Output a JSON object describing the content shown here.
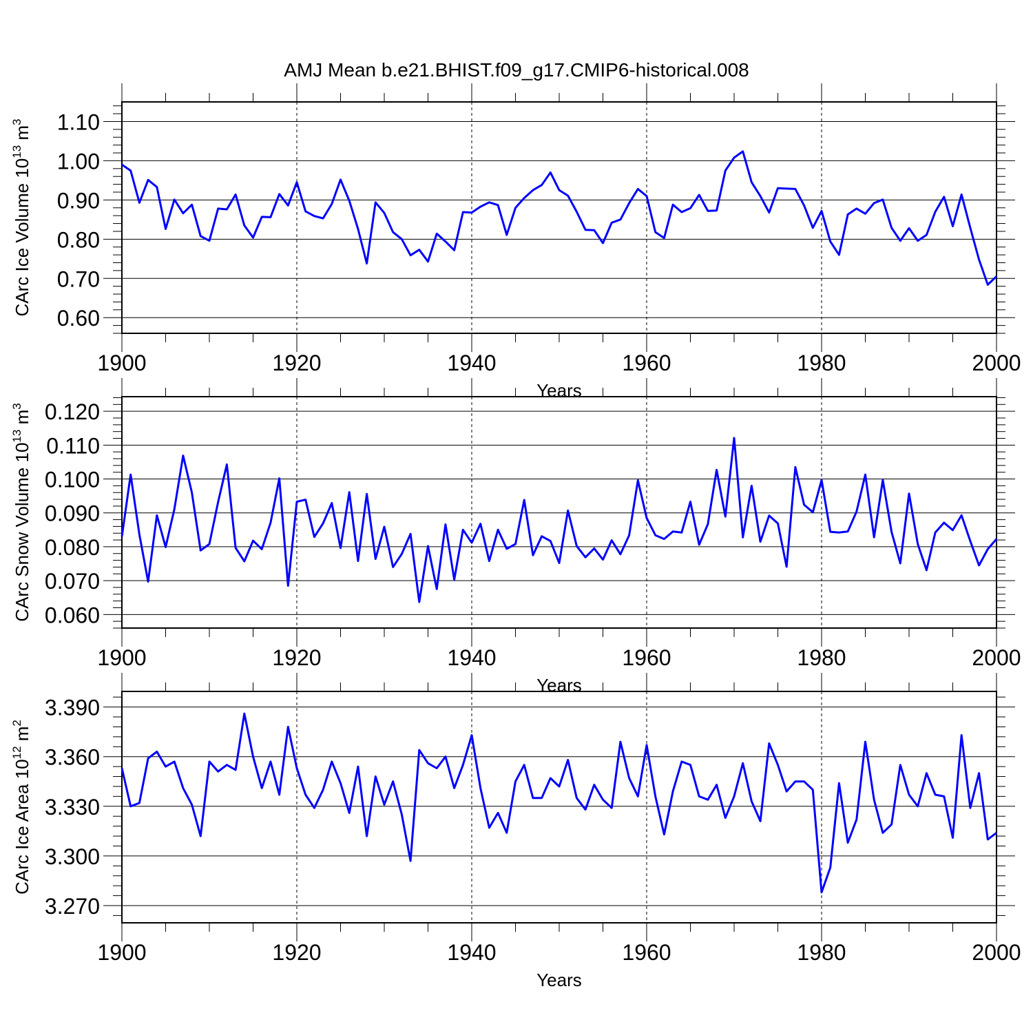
{
  "title": "AMJ Mean b.e21.BHIST.f09_g17.CMIP6-historical.008",
  "chart_data": [
    {
      "type": "line",
      "ylabel_main": "CArc Ice Volume 10",
      "ylabel_sup": "13",
      "ylabel_unit": " m",
      "ylabel_unit_sup": "3",
      "xlabel": "Years",
      "xlim": [
        1900,
        2000
      ],
      "ylim": [
        0.56,
        1.15
      ],
      "yticks": [
        0.6,
        0.7,
        0.8,
        0.9,
        1.0,
        1.1
      ],
      "ytick_labels": [
        "0.60",
        "0.70",
        "0.80",
        "0.90",
        "1.00",
        "1.10"
      ],
      "yminor_step": 0.02,
      "xticks": [
        1900,
        1920,
        1940,
        1960,
        1980,
        2000
      ],
      "xtick_labels": [
        "1900",
        "1920",
        "1940",
        "1960",
        "1980",
        "2000"
      ],
      "color": "#0000ff",
      "x_start": 1900,
      "values": [
        0.99,
        0.975,
        0.893,
        0.951,
        0.933,
        0.826,
        0.901,
        0.866,
        0.888,
        0.808,
        0.796,
        0.878,
        0.876,
        0.914,
        0.835,
        0.804,
        0.857,
        0.856,
        0.915,
        0.886,
        0.945,
        0.871,
        0.859,
        0.853,
        0.89,
        0.952,
        0.898,
        0.826,
        0.738,
        0.894,
        0.867,
        0.818,
        0.8,
        0.759,
        0.773,
        0.743,
        0.814,
        0.794,
        0.772,
        0.869,
        0.868,
        0.883,
        0.894,
        0.887,
        0.811,
        0.88,
        0.905,
        0.925,
        0.938,
        0.97,
        0.925,
        0.911,
        0.87,
        0.824,
        0.823,
        0.79,
        0.842,
        0.85,
        0.892,
        0.928,
        0.91,
        0.818,
        0.803,
        0.888,
        0.869,
        0.879,
        0.913,
        0.872,
        0.873,
        0.975,
        1.008,
        1.024,
        0.945,
        0.91,
        0.868,
        0.93,
        0.929,
        0.928,
        0.886,
        0.829,
        0.872,
        0.794,
        0.76,
        0.863,
        0.878,
        0.865,
        0.892,
        0.901,
        0.829,
        0.796,
        0.828,
        0.796,
        0.811,
        0.87,
        0.908,
        0.833,
        0.914,
        0.829,
        0.748,
        0.684,
        0.705
      ]
    },
    {
      "type": "line",
      "ylabel_main": "CArc Snow Volume 10",
      "ylabel_sup": "13",
      "ylabel_unit": " m",
      "ylabel_unit_sup": "3",
      "xlabel": "Years",
      "xlim": [
        1900,
        2000
      ],
      "ylim": [
        0.056,
        0.1243
      ],
      "yticks": [
        0.06,
        0.07,
        0.08,
        0.09,
        0.1,
        0.11,
        0.12
      ],
      "ytick_labels": [
        "0.060",
        "0.070",
        "0.080",
        "0.090",
        "0.100",
        "0.110",
        "0.120"
      ],
      "yminor_step": 0.002,
      "xticks": [
        1900,
        1920,
        1940,
        1960,
        1980,
        2000
      ],
      "xtick_labels": [
        "1900",
        "1920",
        "1940",
        "1960",
        "1980",
        "2000"
      ],
      "color": "#0000ff",
      "x_start": 1900,
      "values": [
        0.083,
        0.1013,
        0.0836,
        0.0697,
        0.0893,
        0.0799,
        0.0911,
        0.1069,
        0.096,
        0.0789,
        0.0808,
        0.0932,
        0.1043,
        0.0797,
        0.0757,
        0.0818,
        0.0793,
        0.0871,
        0.1002,
        0.0685,
        0.0933,
        0.0939,
        0.0829,
        0.0869,
        0.0929,
        0.0796,
        0.0961,
        0.0758,
        0.0956,
        0.0764,
        0.0859,
        0.074,
        0.0779,
        0.0838,
        0.0637,
        0.0802,
        0.0675,
        0.0866,
        0.0703,
        0.085,
        0.0812,
        0.0868,
        0.0758,
        0.085,
        0.0794,
        0.0808,
        0.0938,
        0.0775,
        0.0831,
        0.0817,
        0.0752,
        0.0907,
        0.0802,
        0.0769,
        0.0795,
        0.0762,
        0.0819,
        0.0778,
        0.0834,
        0.0996,
        0.0885,
        0.0834,
        0.0823,
        0.0845,
        0.0842,
        0.0933,
        0.0806,
        0.0867,
        0.1027,
        0.0889,
        0.1121,
        0.0828,
        0.098,
        0.0815,
        0.0892,
        0.0869,
        0.0741,
        0.1035,
        0.0924,
        0.0902,
        0.0997,
        0.0844,
        0.0842,
        0.0845,
        0.0904,
        0.1013,
        0.0828,
        0.0997,
        0.0844,
        0.0751,
        0.0957,
        0.0808,
        0.0731,
        0.0842,
        0.0871,
        0.0849,
        0.0893,
        0.0817,
        0.0745,
        0.0793,
        0.0823
      ]
    },
    {
      "type": "line",
      "ylabel_main": "CArc Ice Area 10",
      "ylabel_sup": "12",
      "ylabel_unit": " m",
      "ylabel_unit_sup": "2",
      "xlabel": "Years",
      "xlim": [
        1900,
        2000
      ],
      "ylim": [
        3.2596,
        3.3994
      ],
      "yticks": [
        3.27,
        3.3,
        3.33,
        3.36,
        3.39
      ],
      "ytick_labels": [
        "3.270",
        "3.300",
        "3.330",
        "3.360",
        "3.390"
      ],
      "yminor_step": 0.006,
      "xticks": [
        1900,
        1920,
        1940,
        1960,
        1980,
        2000
      ],
      "xtick_labels": [
        "1900",
        "1920",
        "1940",
        "1960",
        "1980",
        "2000"
      ],
      "color": "#0000ff",
      "x_start": 1900,
      "values": [
        3.353,
        3.33,
        3.332,
        3.359,
        3.363,
        3.354,
        3.357,
        3.341,
        3.331,
        3.312,
        3.357,
        3.351,
        3.355,
        3.352,
        3.386,
        3.36,
        3.341,
        3.357,
        3.337,
        3.378,
        3.353,
        3.337,
        3.329,
        3.34,
        3.357,
        3.344,
        3.326,
        3.354,
        3.312,
        3.348,
        3.331,
        3.345,
        3.325,
        3.297,
        3.364,
        3.356,
        3.353,
        3.36,
        3.341,
        3.355,
        3.373,
        3.341,
        3.317,
        3.326,
        3.314,
        3.345,
        3.355,
        3.335,
        3.335,
        3.347,
        3.342,
        3.358,
        3.335,
        3.328,
        3.343,
        3.334,
        3.329,
        3.369,
        3.347,
        3.336,
        3.367,
        3.336,
        3.313,
        3.339,
        3.357,
        3.355,
        3.336,
        3.334,
        3.343,
        3.323,
        3.336,
        3.356,
        3.333,
        3.321,
        3.368,
        3.355,
        3.339,
        3.345,
        3.345,
        3.34,
        3.278,
        3.293,
        3.344,
        3.308,
        3.322,
        3.369,
        3.334,
        3.314,
        3.319,
        3.355,
        3.337,
        3.33,
        3.35,
        3.337,
        3.336,
        3.311,
        3.373,
        3.329,
        3.35,
        3.31,
        3.314
      ]
    }
  ]
}
